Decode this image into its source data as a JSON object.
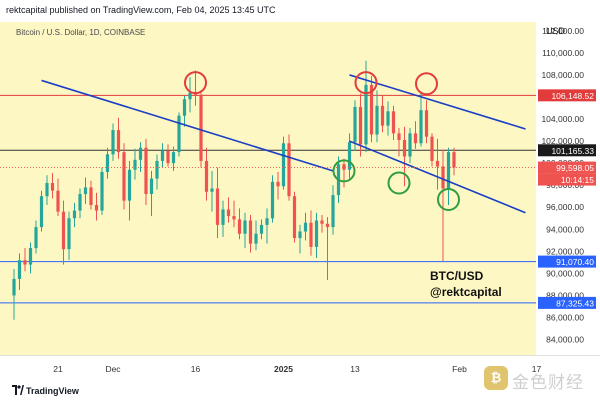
{
  "header": {
    "text": "rektcapital published on TradingView.com, Feb 04, 2025 13:45 UTC"
  },
  "symbol": {
    "text": "Bitcoin / U.S. Dollar, 1D, COINBASE"
  },
  "currency": "USD",
  "annotation": {
    "line1": "BTC/USD",
    "line2": "@rektcapital"
  },
  "footer": {
    "brand": "TradingView",
    "watermark": "金色财经"
  },
  "chart_data": {
    "type": "candlestick",
    "title": "Bitcoin / U.S. Dollar, 1D, COINBASE",
    "ylim": [
      82600,
      112800
    ],
    "y_ticks": [
      84000,
      86000,
      88000,
      90000,
      92000,
      94000,
      96000,
      98000,
      100000,
      102000,
      104000,
      106000,
      108000,
      110000,
      112000
    ],
    "y_tick_labels": [
      "84,000.00",
      "86,000.00",
      "88,000.00",
      "90,000.00",
      "92,000.00",
      "94,000.00",
      "96,000.00",
      "98,000.00",
      "100,000.00",
      "102,000.00",
      "104,000.00",
      "106,000.00",
      "108,000.00",
      "110,000.00",
      "112,000.00"
    ],
    "x_ticks": [
      {
        "label": "21",
        "index": 8
      },
      {
        "label": "Dec",
        "index": 18
      },
      {
        "label": "16",
        "index": 33
      },
      {
        "label": "2025",
        "index": 49
      },
      {
        "label": "13",
        "index": 62
      },
      {
        "label": "Feb",
        "index": 81
      },
      {
        "label": "17",
        "index": 95
      }
    ],
    "horizontal_levels": [
      {
        "value": 106148.52,
        "label": "106,148.52",
        "color": "#e23b3b"
      },
      {
        "value": 101165.33,
        "label": "101,165.33",
        "color": "#333333"
      },
      {
        "value": 91070.4,
        "label": "91,070.40",
        "color": "#2962ff"
      },
      {
        "value": 87325.43,
        "label": "87,325.43",
        "color": "#2962ff"
      }
    ],
    "price_tags": [
      {
        "value": 99598.05,
        "label": "99,598.05",
        "color": "#ef5350"
      },
      {
        "label": "10:14:15",
        "color": "#ef5350"
      }
    ],
    "grid": false,
    "candles": [
      {
        "o": 88000,
        "h": 90400,
        "l": 85800,
        "c": 89500
      },
      {
        "o": 89500,
        "h": 91800,
        "l": 88500,
        "c": 91200
      },
      {
        "o": 91200,
        "h": 92300,
        "l": 90200,
        "c": 90800
      },
      {
        "o": 90800,
        "h": 92800,
        "l": 90000,
        "c": 92300
      },
      {
        "o": 92300,
        "h": 94800,
        "l": 91800,
        "c": 94200
      },
      {
        "o": 94200,
        "h": 97500,
        "l": 93800,
        "c": 97000
      },
      {
        "o": 97000,
        "h": 98900,
        "l": 96200,
        "c": 98200
      },
      {
        "o": 98200,
        "h": 99100,
        "l": 96800,
        "c": 97500
      },
      {
        "o": 97500,
        "h": 98600,
        "l": 95200,
        "c": 95600
      },
      {
        "o": 95600,
        "h": 96600,
        "l": 90800,
        "c": 92200
      },
      {
        "o": 92200,
        "h": 95600,
        "l": 91200,
        "c": 95000
      },
      {
        "o": 95000,
        "h": 96400,
        "l": 94200,
        "c": 95700
      },
      {
        "o": 95700,
        "h": 97700,
        "l": 95000,
        "c": 97200
      },
      {
        "o": 97200,
        "h": 98700,
        "l": 96300,
        "c": 97800
      },
      {
        "o": 97800,
        "h": 98400,
        "l": 95800,
        "c": 96200
      },
      {
        "o": 96200,
        "h": 97300,
        "l": 94800,
        "c": 95700
      },
      {
        "o": 95700,
        "h": 99600,
        "l": 95300,
        "c": 99200
      },
      {
        "o": 99200,
        "h": 101400,
        "l": 98600,
        "c": 100800
      },
      {
        "o": 100800,
        "h": 103600,
        "l": 100200,
        "c": 103000
      },
      {
        "o": 103000,
        "h": 104100,
        "l": 100400,
        "c": 101000
      },
      {
        "o": 101000,
        "h": 101800,
        "l": 95800,
        "c": 96600
      },
      {
        "o": 96600,
        "h": 100200,
        "l": 94800,
        "c": 99400
      },
      {
        "o": 99400,
        "h": 101300,
        "l": 98500,
        "c": 100300
      },
      {
        "o": 100300,
        "h": 101900,
        "l": 99200,
        "c": 101400
      },
      {
        "o": 101400,
        "h": 102200,
        "l": 96200,
        "c": 97200
      },
      {
        "o": 97200,
        "h": 99300,
        "l": 95200,
        "c": 98600
      },
      {
        "o": 98600,
        "h": 100800,
        "l": 97600,
        "c": 100200
      },
      {
        "o": 100200,
        "h": 101800,
        "l": 99600,
        "c": 101100
      },
      {
        "o": 101100,
        "h": 101700,
        "l": 99700,
        "c": 100000
      },
      {
        "o": 100000,
        "h": 101500,
        "l": 99300,
        "c": 101000
      },
      {
        "o": 101000,
        "h": 104600,
        "l": 100600,
        "c": 104300
      },
      {
        "o": 104300,
        "h": 106100,
        "l": 103300,
        "c": 105800
      },
      {
        "o": 105800,
        "h": 107800,
        "l": 104600,
        "c": 106400
      },
      {
        "o": 106400,
        "h": 108400,
        "l": 105200,
        "c": 106200
      },
      {
        "o": 106200,
        "h": 106600,
        "l": 99600,
        "c": 100200
      },
      {
        "o": 100200,
        "h": 101400,
        "l": 96600,
        "c": 97400
      },
      {
        "o": 97400,
        "h": 99300,
        "l": 95600,
        "c": 97700
      },
      {
        "o": 97700,
        "h": 99600,
        "l": 93200,
        "c": 94400
      },
      {
        "o": 94400,
        "h": 96600,
        "l": 93300,
        "c": 95800
      },
      {
        "o": 95800,
        "h": 96900,
        "l": 94600,
        "c": 95200
      },
      {
        "o": 95200,
        "h": 96600,
        "l": 94200,
        "c": 94900
      },
      {
        "o": 94900,
        "h": 95900,
        "l": 93100,
        "c": 93600
      },
      {
        "o": 93600,
        "h": 95500,
        "l": 92300,
        "c": 94800
      },
      {
        "o": 94800,
        "h": 95300,
        "l": 91900,
        "c": 92700
      },
      {
        "o": 92700,
        "h": 94800,
        "l": 92100,
        "c": 93600
      },
      {
        "o": 93600,
        "h": 94900,
        "l": 93100,
        "c": 94400
      },
      {
        "o": 94400,
        "h": 95900,
        "l": 92700,
        "c": 95000
      },
      {
        "o": 95000,
        "h": 98900,
        "l": 94600,
        "c": 98300
      },
      {
        "o": 98300,
        "h": 99200,
        "l": 96700,
        "c": 97900
      },
      {
        "o": 97900,
        "h": 102400,
        "l": 97600,
        "c": 101800
      },
      {
        "o": 101800,
        "h": 102600,
        "l": 96600,
        "c": 97000
      },
      {
        "o": 97000,
        "h": 97400,
        "l": 92800,
        "c": 93200
      },
      {
        "o": 93200,
        "h": 94400,
        "l": 91800,
        "c": 93800
      },
      {
        "o": 93800,
        "h": 95500,
        "l": 93000,
        "c": 94600
      },
      {
        "o": 94600,
        "h": 95700,
        "l": 91600,
        "c": 92400
      },
      {
        "o": 92400,
        "h": 95500,
        "l": 91400,
        "c": 94800
      },
      {
        "o": 94800,
        "h": 95300,
        "l": 93700,
        "c": 94500
      },
      {
        "o": 94500,
        "h": 95100,
        "l": 89400,
        "c": 94200
      },
      {
        "o": 94200,
        "h": 98000,
        "l": 93500,
        "c": 97100
      },
      {
        "o": 97100,
        "h": 100600,
        "l": 96400,
        "c": 99900
      },
      {
        "o": 99900,
        "h": 100400,
        "l": 97800,
        "c": 99400
      },
      {
        "o": 99400,
        "h": 102700,
        "l": 98600,
        "c": 101900
      },
      {
        "o": 101900,
        "h": 105700,
        "l": 101100,
        "c": 105100
      },
      {
        "o": 105100,
        "h": 106300,
        "l": 100600,
        "c": 101700
      },
      {
        "o": 101700,
        "h": 109300,
        "l": 101000,
        "c": 107100
      },
      {
        "o": 107100,
        "h": 107900,
        "l": 101900,
        "c": 102600
      },
      {
        "o": 102600,
        "h": 106600,
        "l": 101900,
        "c": 105200
      },
      {
        "o": 105200,
        "h": 106100,
        "l": 102800,
        "c": 103400
      },
      {
        "o": 103400,
        "h": 105600,
        "l": 102500,
        "c": 104700
      },
      {
        "o": 104700,
        "h": 105200,
        "l": 102100,
        "c": 102700
      },
      {
        "o": 102700,
        "h": 103200,
        "l": 100600,
        "c": 102100
      },
      {
        "o": 102100,
        "h": 103300,
        "l": 97900,
        "c": 100600
      },
      {
        "o": 100600,
        "h": 103200,
        "l": 100000,
        "c": 102700
      },
      {
        "o": 102700,
        "h": 103800,
        "l": 101300,
        "c": 101800
      },
      {
        "o": 101800,
        "h": 106400,
        "l": 101500,
        "c": 104800
      },
      {
        "o": 104800,
        "h": 105700,
        "l": 101800,
        "c": 102400
      },
      {
        "o": 102400,
        "h": 102700,
        "l": 99700,
        "c": 100200
      },
      {
        "o": 100200,
        "h": 102200,
        "l": 97600,
        "c": 99700
      },
      {
        "o": 99700,
        "h": 101200,
        "l": 91100,
        "c": 97700
      },
      {
        "o": 97700,
        "h": 101400,
        "l": 96200,
        "c": 101000
      },
      {
        "o": 101000,
        "h": 101400,
        "l": 98900,
        "c": 99600
      }
    ],
    "trendlines": [
      {
        "from": {
          "index": 5,
          "value": 107500
        },
        "to": {
          "index": 58,
          "value": 99300
        },
        "color": "#1c3fc4"
      },
      {
        "from": {
          "index": 61,
          "value": 108000
        },
        "to": {
          "index": 93,
          "value": 103100
        },
        "color": "#1c3fc4"
      },
      {
        "from": {
          "index": 61,
          "value": 102000
        },
        "to": {
          "index": 93,
          "value": 95500
        },
        "color": "#1c3fc4"
      }
    ],
    "circles": [
      {
        "index": 33,
        "value": 107300,
        "color": "#e23b3b"
      },
      {
        "index": 64,
        "value": 107300,
        "color": "#e23b3b"
      },
      {
        "index": 75,
        "value": 107200,
        "color": "#e23b3b"
      },
      {
        "index": 60,
        "value": 99300,
        "color": "#2e9e3e"
      },
      {
        "index": 70,
        "value": 98200,
        "color": "#2e9e3e"
      },
      {
        "index": 79,
        "value": 96700,
        "color": "#2e9e3e"
      }
    ]
  }
}
